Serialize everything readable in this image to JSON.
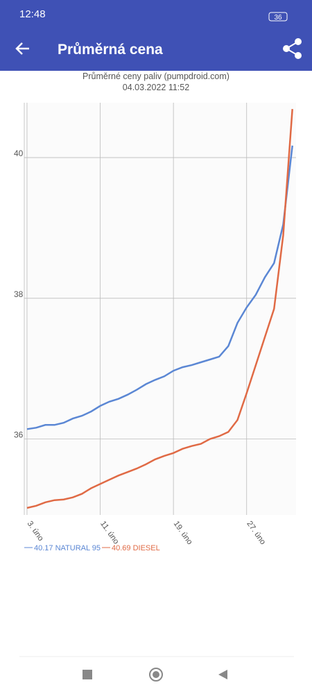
{
  "status_bar": {
    "time": "12:48",
    "battery": "36"
  },
  "app_bar": {
    "title": "Průměrná cena"
  },
  "chart_data": {
    "type": "line",
    "title": "Průměrné ceny paliv (pumpdroid.com)",
    "subtitle": "04.03.2022 11:52",
    "x": [
      3,
      4,
      5,
      6,
      7,
      8,
      9,
      10,
      11,
      12,
      13,
      14,
      15,
      16,
      17,
      18,
      19,
      20,
      21,
      22,
      23,
      24,
      25,
      26,
      27,
      28,
      29,
      30,
      31,
      32
    ],
    "xlim": [
      2.7,
      32.4
    ],
    "xticks": [
      {
        "value": 3,
        "label": "3. úno"
      },
      {
        "value": 11,
        "label": "11. úno"
      },
      {
        "value": 19,
        "label": "19. úno"
      },
      {
        "value": 27,
        "label": "27. úno"
      }
    ],
    "ylim": [
      34.92,
      40.78
    ],
    "yticks": [
      36,
      38,
      40
    ],
    "grid": true,
    "series": [
      {
        "name": "40.17 NATURAL 95",
        "color": "#5b87d4",
        "values": [
          36.14,
          36.16,
          36.2,
          36.2,
          36.23,
          36.29,
          36.33,
          36.39,
          36.47,
          36.53,
          36.57,
          36.63,
          36.7,
          36.78,
          36.84,
          36.89,
          36.97,
          37.02,
          37.05,
          37.09,
          37.13,
          37.17,
          37.32,
          37.65,
          37.87,
          38.05,
          38.3,
          38.5,
          39.05,
          40.17
        ]
      },
      {
        "name": "40.69 DIESEL",
        "color": "#e06a45",
        "values": [
          35.02,
          35.05,
          35.1,
          35.13,
          35.14,
          35.17,
          35.22,
          35.3,
          35.36,
          35.42,
          35.48,
          35.53,
          35.58,
          35.64,
          35.71,
          35.76,
          35.8,
          35.86,
          35.9,
          35.93,
          36.0,
          36.04,
          36.1,
          36.27,
          36.65,
          37.05,
          37.45,
          37.85,
          38.9,
          40.69
        ]
      }
    ]
  }
}
